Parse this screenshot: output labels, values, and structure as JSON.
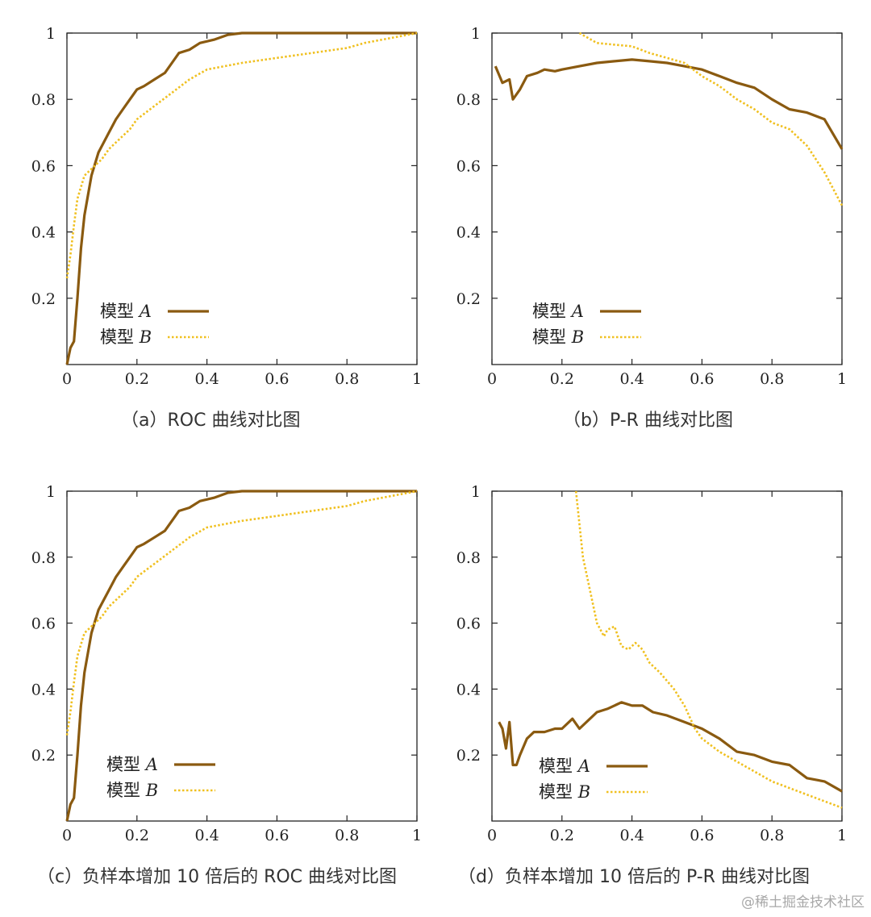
{
  "colors": {
    "model_a": "#8a5a10",
    "model_b": "#f0c020",
    "axis": "#222222"
  },
  "chart_data": [
    {
      "id": "a",
      "type": "line",
      "caption": "（a）ROC 曲线对比图",
      "xlim": [
        0,
        1
      ],
      "ylim": [
        0,
        1
      ],
      "xticks": [
        "0",
        "0.2",
        "0.4",
        "0.6",
        "0.8",
        "1"
      ],
      "yticks": [
        "0.2",
        "0.4",
        "0.6",
        "0.8",
        "1"
      ],
      "legend": [
        {
          "name": "模型",
          "var": "A"
        },
        {
          "name": "模型",
          "var": "B"
        }
      ],
      "series": [
        {
          "name": "模型 A",
          "style": "solid",
          "x": [
            0,
            0.01,
            0.02,
            0.03,
            0.04,
            0.05,
            0.07,
            0.09,
            0.12,
            0.14,
            0.16,
            0.18,
            0.2,
            0.22,
            0.25,
            0.28,
            0.3,
            0.32,
            0.35,
            0.38,
            0.42,
            0.46,
            0.5,
            0.6,
            0.8,
            1
          ],
          "y": [
            0,
            0.05,
            0.07,
            0.2,
            0.35,
            0.45,
            0.57,
            0.64,
            0.7,
            0.74,
            0.77,
            0.8,
            0.83,
            0.84,
            0.86,
            0.88,
            0.91,
            0.94,
            0.95,
            0.97,
            0.98,
            0.995,
            1,
            1,
            1,
            1
          ]
        },
        {
          "name": "模型 B",
          "style": "dotted",
          "x": [
            0,
            0.01,
            0.02,
            0.03,
            0.05,
            0.07,
            0.1,
            0.12,
            0.15,
            0.18,
            0.2,
            0.25,
            0.3,
            0.35,
            0.4,
            0.45,
            0.5,
            0.6,
            0.7,
            0.8,
            0.85,
            0.9,
            0.95,
            1
          ],
          "y": [
            0.26,
            0.33,
            0.42,
            0.5,
            0.57,
            0.59,
            0.62,
            0.65,
            0.68,
            0.71,
            0.74,
            0.78,
            0.82,
            0.86,
            0.89,
            0.9,
            0.91,
            0.925,
            0.94,
            0.955,
            0.97,
            0.98,
            0.99,
            1
          ]
        }
      ]
    },
    {
      "id": "b",
      "type": "line",
      "caption": "（b）P-R 曲线对比图",
      "xlim": [
        0,
        1
      ],
      "ylim": [
        0,
        1
      ],
      "xticks": [
        "0",
        "0.2",
        "0.4",
        "0.6",
        "0.8",
        "1"
      ],
      "yticks": [
        "0.2",
        "0.4",
        "0.6",
        "0.8",
        "1"
      ],
      "legend": [
        {
          "name": "模型",
          "var": "A"
        },
        {
          "name": "模型",
          "var": "B"
        }
      ],
      "series": [
        {
          "name": "模型 A",
          "style": "solid",
          "x": [
            0.01,
            0.03,
            0.05,
            0.06,
            0.08,
            0.1,
            0.13,
            0.15,
            0.18,
            0.2,
            0.25,
            0.3,
            0.35,
            0.4,
            0.45,
            0.5,
            0.55,
            0.6,
            0.65,
            0.7,
            0.75,
            0.8,
            0.85,
            0.9,
            0.95,
            1
          ],
          "y": [
            0.9,
            0.85,
            0.86,
            0.8,
            0.83,
            0.87,
            0.88,
            0.89,
            0.885,
            0.89,
            0.9,
            0.91,
            0.915,
            0.92,
            0.915,
            0.91,
            0.9,
            0.89,
            0.87,
            0.85,
            0.835,
            0.8,
            0.77,
            0.76,
            0.74,
            0.65
          ]
        },
        {
          "name": "模型 B",
          "style": "dotted",
          "x": [
            0.25,
            0.3,
            0.35,
            0.4,
            0.45,
            0.5,
            0.55,
            0.6,
            0.65,
            0.7,
            0.75,
            0.8,
            0.85,
            0.9,
            0.95,
            1
          ],
          "y": [
            1,
            0.97,
            0.965,
            0.96,
            0.94,
            0.925,
            0.91,
            0.87,
            0.84,
            0.8,
            0.77,
            0.73,
            0.71,
            0.66,
            0.58,
            0.48
          ]
        }
      ]
    },
    {
      "id": "c",
      "type": "line",
      "caption": "（c）负样本增加 10 倍后的 ROC 曲线对比图",
      "xlim": [
        0,
        1
      ],
      "ylim": [
        0,
        1
      ],
      "xticks": [
        "0",
        "0.2",
        "0.4",
        "0.6",
        "0.8",
        "1"
      ],
      "yticks": [
        "0.2",
        "0.4",
        "0.6",
        "0.8",
        "1"
      ],
      "legend": [
        {
          "name": "模型",
          "var": "A"
        },
        {
          "name": "模型",
          "var": "B"
        }
      ],
      "series": [
        {
          "name": "模型 A",
          "style": "solid",
          "x": [
            0,
            0.01,
            0.02,
            0.03,
            0.04,
            0.05,
            0.07,
            0.09,
            0.12,
            0.14,
            0.16,
            0.18,
            0.2,
            0.22,
            0.25,
            0.28,
            0.3,
            0.32,
            0.35,
            0.38,
            0.42,
            0.46,
            0.5,
            0.6,
            0.8,
            1
          ],
          "y": [
            0,
            0.05,
            0.07,
            0.2,
            0.35,
            0.45,
            0.57,
            0.64,
            0.7,
            0.74,
            0.77,
            0.8,
            0.83,
            0.84,
            0.86,
            0.88,
            0.91,
            0.94,
            0.95,
            0.97,
            0.98,
            0.995,
            1,
            1,
            1,
            1
          ]
        },
        {
          "name": "模型 B",
          "style": "dotted",
          "x": [
            0,
            0.01,
            0.02,
            0.03,
            0.05,
            0.07,
            0.1,
            0.12,
            0.15,
            0.18,
            0.2,
            0.25,
            0.3,
            0.35,
            0.4,
            0.45,
            0.5,
            0.6,
            0.7,
            0.8,
            0.85,
            0.9,
            0.95,
            1
          ],
          "y": [
            0.26,
            0.33,
            0.42,
            0.5,
            0.57,
            0.59,
            0.62,
            0.65,
            0.68,
            0.71,
            0.74,
            0.78,
            0.82,
            0.86,
            0.89,
            0.9,
            0.91,
            0.925,
            0.94,
            0.955,
            0.97,
            0.98,
            0.99,
            1
          ]
        }
      ]
    },
    {
      "id": "d",
      "type": "line",
      "caption": "（d）负样本增加 10 倍后的 P-R 曲线对比图",
      "xlim": [
        0,
        1
      ],
      "ylim": [
        0,
        1
      ],
      "xticks": [
        "0",
        "0.2",
        "0.4",
        "0.6",
        "0.8",
        "1"
      ],
      "yticks": [
        "0.2",
        "0.4",
        "0.6",
        "0.8",
        "1"
      ],
      "legend": [
        {
          "name": "模型",
          "var": "A"
        },
        {
          "name": "模型",
          "var": "B"
        }
      ],
      "series": [
        {
          "name": "模型 A",
          "style": "solid",
          "x": [
            0.02,
            0.03,
            0.04,
            0.05,
            0.06,
            0.07,
            0.08,
            0.1,
            0.12,
            0.15,
            0.18,
            0.2,
            0.23,
            0.25,
            0.28,
            0.3,
            0.33,
            0.37,
            0.4,
            0.43,
            0.46,
            0.5,
            0.55,
            0.6,
            0.65,
            0.7,
            0.75,
            0.8,
            0.85,
            0.9,
            0.95,
            1
          ],
          "y": [
            0.3,
            0.28,
            0.22,
            0.3,
            0.17,
            0.17,
            0.2,
            0.25,
            0.27,
            0.27,
            0.28,
            0.28,
            0.31,
            0.28,
            0.31,
            0.33,
            0.34,
            0.36,
            0.35,
            0.35,
            0.33,
            0.32,
            0.3,
            0.28,
            0.25,
            0.21,
            0.2,
            0.18,
            0.17,
            0.13,
            0.12,
            0.09
          ]
        },
        {
          "name": "模型 B",
          "style": "dotted",
          "x": [
            0.24,
            0.26,
            0.28,
            0.3,
            0.32,
            0.33,
            0.35,
            0.37,
            0.39,
            0.41,
            0.43,
            0.45,
            0.48,
            0.52,
            0.55,
            0.58,
            0.6,
            0.65,
            0.7,
            0.75,
            0.8,
            0.85,
            0.9,
            0.95,
            1
          ],
          "y": [
            1,
            0.8,
            0.7,
            0.6,
            0.56,
            0.58,
            0.59,
            0.53,
            0.52,
            0.54,
            0.52,
            0.48,
            0.45,
            0.4,
            0.35,
            0.28,
            0.25,
            0.21,
            0.18,
            0.15,
            0.12,
            0.1,
            0.08,
            0.06,
            0.04
          ]
        }
      ]
    }
  ],
  "watermark": "@稀土掘金技术社区"
}
